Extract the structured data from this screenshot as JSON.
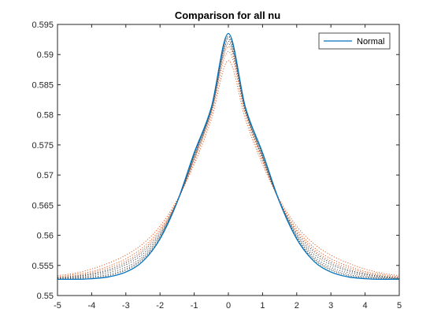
{
  "chart_data": {
    "type": "line",
    "title": "Comparison for all nu",
    "xlabel": "",
    "ylabel": "",
    "xlim": [
      -5,
      5
    ],
    "ylim": [
      0.55,
      0.595
    ],
    "x_ticks": [
      -5,
      -4,
      -3,
      -2,
      -1,
      0,
      1,
      2,
      3,
      4,
      5
    ],
    "x_tick_labels": [
      "-5",
      "-4",
      "-3",
      "-2",
      "-1",
      "0",
      "1",
      "2",
      "3",
      "4",
      "5"
    ],
    "y_ticks": [
      0.55,
      0.555,
      0.56,
      0.565,
      0.57,
      0.575,
      0.58,
      0.585,
      0.59,
      0.595
    ],
    "y_tick_labels": [
      "0.55",
      "0.555",
      "0.56",
      "0.565",
      "0.57",
      "0.575",
      "0.58",
      "0.585",
      "0.59",
      "0.595"
    ],
    "grid": false,
    "legend": {
      "position": "top-right",
      "entries": [
        "Normal"
      ]
    },
    "x": [
      -5,
      -4.5,
      -4,
      -3.5,
      -3,
      -2.5,
      -2,
      -1.5,
      -1,
      -0.5,
      0,
      0.5,
      1,
      1.5,
      2,
      2.5,
      3,
      3.5,
      4,
      4.5,
      5
    ],
    "series": [
      {
        "name": "Normal",
        "style": "solid",
        "color": "#0072bd",
        "values": [
          0.5527,
          0.5527,
          0.5528,
          0.5531,
          0.5539,
          0.5557,
          0.5594,
          0.5655,
          0.5737,
          0.5812,
          0.5935,
          0.5812,
          0.5737,
          0.5655,
          0.5594,
          0.5557,
          0.5539,
          0.5531,
          0.5528,
          0.5527,
          0.5527
        ]
      },
      {
        "style": "dotted",
        "color": "#d95319",
        "values": [
          0.5533,
          0.5537,
          0.5544,
          0.5554,
          0.5567,
          0.5586,
          0.5615,
          0.5659,
          0.5718,
          0.5792,
          0.589,
          0.5792,
          0.5718,
          0.5659,
          0.5615,
          0.5586,
          0.5567,
          0.5554,
          0.5544,
          0.5537,
          0.5533
        ]
      },
      {
        "style": "dotted",
        "color": "#d95319",
        "values": [
          0.5531,
          0.5535,
          0.554,
          0.5549,
          0.5561,
          0.558,
          0.561,
          0.5657,
          0.5723,
          0.58,
          0.5905,
          0.58,
          0.5723,
          0.5657,
          0.561,
          0.558,
          0.5561,
          0.5549,
          0.554,
          0.5535,
          0.5531
        ]
      },
      {
        "style": "dotted",
        "color": "#d95319",
        "values": [
          0.553,
          0.5533,
          0.5538,
          0.5546,
          0.5557,
          0.5576,
          0.5607,
          0.5656,
          0.5726,
          0.5804,
          0.5913,
          0.5804,
          0.5726,
          0.5656,
          0.5607,
          0.5576,
          0.5557,
          0.5546,
          0.5538,
          0.5533,
          0.553
        ]
      },
      {
        "style": "dotted",
        "color": "#444444",
        "values": [
          0.5529,
          0.5532,
          0.5536,
          0.5543,
          0.5554,
          0.5573,
          0.5604,
          0.5656,
          0.5728,
          0.5806,
          0.5918,
          0.5806,
          0.5728,
          0.5656,
          0.5604,
          0.5573,
          0.5554,
          0.5543,
          0.5536,
          0.5532,
          0.5529
        ]
      },
      {
        "style": "dotted",
        "color": "#444444",
        "values": [
          0.5529,
          0.5531,
          0.5535,
          0.5541,
          0.5551,
          0.5569,
          0.5601,
          0.5655,
          0.573,
          0.5808,
          0.5922,
          0.5808,
          0.573,
          0.5655,
          0.5601,
          0.5569,
          0.5551,
          0.5541,
          0.5535,
          0.5531,
          0.5529
        ]
      },
      {
        "style": "dotted",
        "color": "#444444",
        "values": [
          0.5528,
          0.553,
          0.5533,
          0.5538,
          0.5547,
          0.5565,
          0.5599,
          0.5655,
          0.5732,
          0.581,
          0.5926,
          0.581,
          0.5732,
          0.5655,
          0.5599,
          0.5565,
          0.5547,
          0.5538,
          0.5533,
          0.553,
          0.5528
        ]
      },
      {
        "style": "dotted",
        "color": "#444444",
        "values": [
          0.5528,
          0.5529,
          0.5531,
          0.5535,
          0.5544,
          0.5562,
          0.5597,
          0.5655,
          0.5734,
          0.5811,
          0.5929,
          0.5811,
          0.5734,
          0.5655,
          0.5597,
          0.5562,
          0.5544,
          0.5535,
          0.5531,
          0.5529,
          0.5528
        ]
      },
      {
        "style": "dotted",
        "color": "#444444",
        "values": [
          0.5527,
          0.5528,
          0.553,
          0.5533,
          0.5542,
          0.556,
          0.5595,
          0.5655,
          0.5735,
          0.5812,
          0.5931,
          0.5812,
          0.5735,
          0.5655,
          0.5595,
          0.556,
          0.5542,
          0.5533,
          0.553,
          0.5528,
          0.5527
        ]
      }
    ]
  }
}
